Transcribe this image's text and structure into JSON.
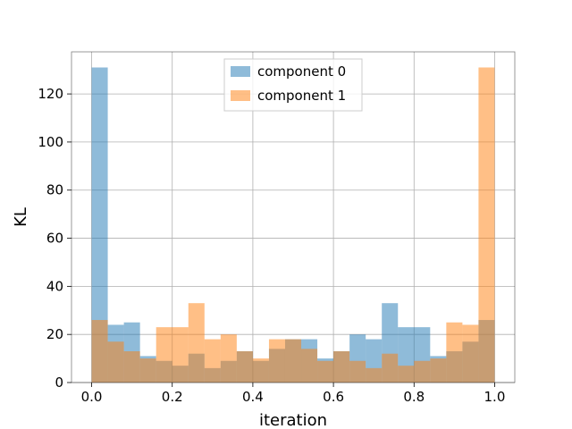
{
  "chart_data": {
    "type": "bar",
    "subtype": "overlapping-histogram",
    "title": "",
    "xlabel": "iteration",
    "ylabel": "KL",
    "xlim": [
      -0.05,
      1.05
    ],
    "ylim": [
      0,
      137.5
    ],
    "xticks": [
      0.0,
      0.2,
      0.4,
      0.6,
      0.8,
      1.0
    ],
    "xtick_labels": [
      "0.0",
      "0.2",
      "0.4",
      "0.6",
      "0.8",
      "1.0"
    ],
    "yticks": [
      0,
      20,
      40,
      60,
      80,
      100,
      120
    ],
    "ytick_labels": [
      "0",
      "20",
      "40",
      "60",
      "80",
      "100",
      "120"
    ],
    "grid": true,
    "legend_position": "top-center",
    "bin_edges": [
      0.0,
      0.04,
      0.08,
      0.12,
      0.16,
      0.2,
      0.24,
      0.28,
      0.32,
      0.36,
      0.4,
      0.44,
      0.48,
      0.52,
      0.56,
      0.6,
      0.64,
      0.68,
      0.72,
      0.76,
      0.8,
      0.84,
      0.88,
      0.92,
      0.96,
      1.0
    ],
    "series": [
      {
        "name": "component 0",
        "color": "#1f77b4",
        "alpha": 0.5,
        "values": [
          131,
          24,
          25,
          11,
          9,
          7,
          12,
          6,
          9,
          13,
          9,
          14,
          18,
          18,
          10,
          13,
          20,
          18,
          33,
          23,
          23,
          11,
          13,
          17,
          26
        ]
      },
      {
        "name": "component 1",
        "color": "#ff7f0e",
        "alpha": 0.5,
        "values": [
          26,
          17,
          13,
          10,
          23,
          23,
          33,
          18,
          20,
          13,
          10,
          18,
          18,
          14,
          9,
          13,
          9,
          6,
          12,
          7,
          9,
          10,
          25,
          24,
          131
        ]
      }
    ]
  }
}
